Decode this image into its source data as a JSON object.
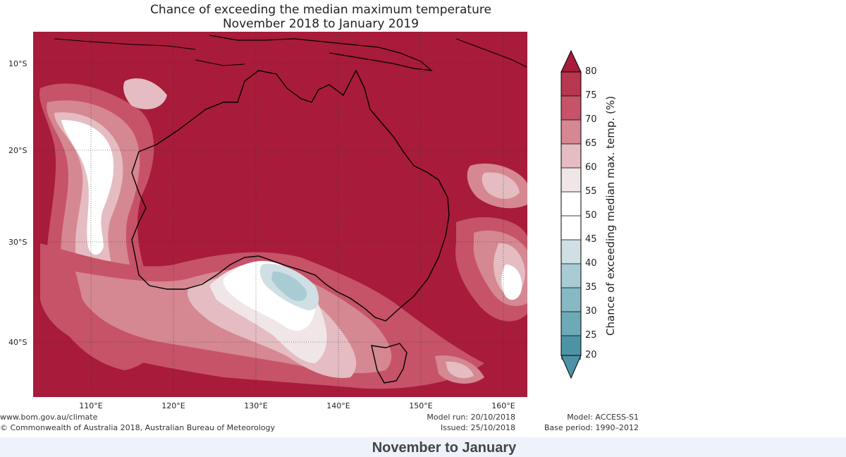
{
  "map": {
    "title_line1": "Chance of exceeding the median maximum temperature",
    "title_line2": "November 2018 to January 2019",
    "lat_labels": [
      "10°S",
      "20°S",
      "30°S",
      "40°S"
    ],
    "lon_labels": [
      "110°E",
      "120°E",
      "130°E",
      "140°E",
      "150°E",
      "160°E"
    ],
    "colorbar": {
      "label": "Chance of exceeding median max. temp. (%)",
      "ticks": [
        "80",
        "75",
        "70",
        "65",
        "60",
        "55",
        "50",
        "45",
        "40",
        "35",
        "30",
        "25",
        "20"
      ],
      "colors": {
        "above_80": "#a81b3b",
        "75_80": "#b73650",
        "70_75": "#c65368",
        "65_70": "#d58792",
        "60_65": "#e4bcc1",
        "55_60": "#f0e6e8",
        "45_55": "#ffffff",
        "40_45": "#cfdfe3",
        "35_40": "#a9ccd4",
        "30_35": "#87b9c4",
        "25_30": "#6ea9b6",
        "below_25": "#4e93a5"
      }
    }
  },
  "footer": {
    "website": "www.bom.gov.au/climate",
    "copyright": "© Commonwealth of Australia 2018, Australian Bureau of Meteorology",
    "model_run": "Model run: 20/10/2018",
    "issued": "Issued: 25/10/2018",
    "model": "Model: ACCESS-S1",
    "base_period": "Base period: 1990–2012"
  },
  "period_heading": "November to January"
}
